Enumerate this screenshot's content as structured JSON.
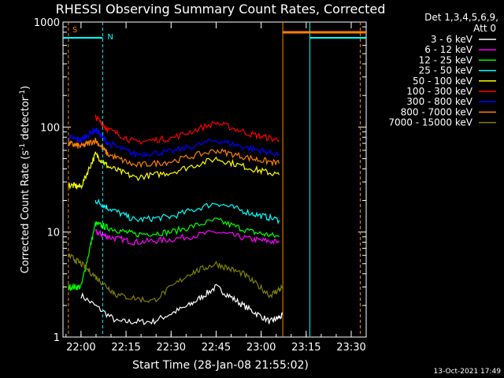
{
  "chart_data": {
    "type": "line",
    "title": "RHESSI Observing Summary Count Rates, Corrected",
    "xlabel": "Start Time (28-Jan-08 21:55:02)",
    "ylabel_parts": {
      "pre": "Corrected Count Rate (s",
      "sup1": "-1",
      "mid": " detector",
      "sup2": "-1",
      "post": ")"
    },
    "yscale": "log",
    "ylim": [
      1,
      1000
    ],
    "xlim_minutes": [
      21.9,
      23.583
    ],
    "x_ticks": [
      {
        "label": "22:00",
        "hour": 22.0
      },
      {
        "label": "22:15",
        "hour": 22.25
      },
      {
        "label": "22:30",
        "hour": 22.5
      },
      {
        "label": "22:45",
        "hour": 22.75
      },
      {
        "label": "23:00",
        "hour": 23.0
      },
      {
        "label": "23:15",
        "hour": 23.25
      },
      {
        "label": "23:30",
        "hour": 23.5
      }
    ],
    "y_ticks": [
      {
        "label": "1",
        "value": 1
      },
      {
        "label": "10",
        "value": 10
      },
      {
        "label": "100",
        "value": 100
      },
      {
        "label": "1000",
        "value": 1000
      }
    ],
    "legend_header": [
      "Det 1,3,4,5,6,9,",
      "Att 0"
    ],
    "series": [
      {
        "name": "3 - 6 keV",
        "color": "#ffffff",
        "x": [
          22.0,
          22.2,
          22.4,
          22.6,
          22.75,
          22.9,
          23.05,
          23.12
        ],
        "y": [
          2.5,
          1.4,
          1.4,
          2.0,
          3.0,
          2.0,
          1.4,
          1.6
        ]
      },
      {
        "name": "6 - 12 keV",
        "color": "#ff00ff",
        "x": [
          22.08,
          22.15,
          22.3,
          22.5,
          22.75,
          22.95,
          23.1
        ],
        "y": [
          10,
          9,
          8,
          8.5,
          10,
          8.5,
          8
        ]
      },
      {
        "name": "12 - 25 keV",
        "color": "#00ff00",
        "x": [
          21.93,
          22.0,
          22.08,
          22.15,
          22.3,
          22.5,
          22.75,
          22.95,
          23.1
        ],
        "y": [
          3,
          3,
          12,
          11,
          9.5,
          10,
          13,
          10,
          9
        ]
      },
      {
        "name": "25 - 50 keV",
        "color": "#00ffff",
        "x": [
          22.08,
          22.15,
          22.3,
          22.5,
          22.75,
          22.95,
          23.1
        ],
        "y": [
          20,
          17,
          13,
          14,
          19,
          15,
          13
        ]
      },
      {
        "name": "50 - 100 keV",
        "color": "#ffff00",
        "x": [
          21.93,
          22.0,
          22.08,
          22.15,
          22.3,
          22.5,
          22.75,
          22.95,
          23.1
        ],
        "y": [
          28,
          27,
          55,
          42,
          33,
          37,
          50,
          40,
          35
        ]
      },
      {
        "name": "100 - 300 keV",
        "color": "#ff0000",
        "x": [
          22.08,
          22.15,
          22.3,
          22.5,
          22.75,
          22.95,
          23.1
        ],
        "y": [
          125,
          95,
          72,
          78,
          110,
          85,
          75
        ]
      },
      {
        "name": "300 - 800 keV",
        "color": "#0000ff",
        "x": [
          21.93,
          22.0,
          22.08,
          22.15,
          22.3,
          22.5,
          22.75,
          22.95,
          23.1
        ],
        "y": [
          80,
          75,
          95,
          70,
          55,
          58,
          75,
          62,
          55
        ]
      },
      {
        "name": "800 - 7000 keV",
        "color": "#ff8000",
        "x": [
          21.93,
          22.0,
          22.08,
          22.15,
          22.3,
          22.5,
          22.75,
          22.95,
          23.1
        ],
        "y": [
          70,
          65,
          75,
          55,
          43,
          47,
          60,
          50,
          45
        ]
      },
      {
        "name": "7000 - 15000 keV",
        "color": "#808000",
        "x": [
          21.93,
          22.0,
          22.1,
          22.2,
          22.4,
          22.6,
          22.75,
          22.9,
          23.05,
          23.12
        ],
        "y": [
          6,
          5,
          3.5,
          2.5,
          2.2,
          4,
          5,
          4,
          2.5,
          3
        ]
      }
    ],
    "flags": [
      {
        "label": "S",
        "color": "#ff8000"
      },
      {
        "label": "N",
        "color": "#00ffff"
      }
    ],
    "timestamp": "13-Oct-2021 17:49"
  }
}
